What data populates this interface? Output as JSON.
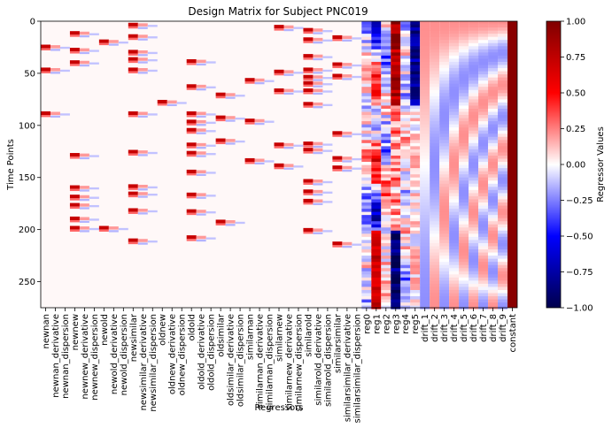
{
  "chart_data": {
    "type": "heatmap",
    "title": "Design Matrix for Subject PNC019",
    "xlabel": "Regressors",
    "ylabel": "Time Points",
    "y_ticks": [
      0,
      50,
      100,
      150,
      200,
      250
    ],
    "ylim": [
      0,
      275
    ],
    "y_inverted": true,
    "colorbar": {
      "label": "Regressor Values",
      "range": [
        -1.0,
        1.0
      ],
      "ticks": [
        "1.00",
        "0.75",
        "0.50",
        "0.25",
        "0.00",
        "−0.25",
        "−0.50",
        "−0.75",
        "−1.00"
      ],
      "colormap": "seismic",
      "colors": [
        "#00004c",
        "#0000ff",
        "#ffffff",
        "#ff0000",
        "#7f0000"
      ]
    },
    "regressors": [
      "newnan",
      "newnan_derivative",
      "newnan_dispersion",
      "newnew",
      "newnew_derivative",
      "newnew_dispersion",
      "newold",
      "newold_derivative",
      "newold_dispersion",
      "newsimilar",
      "newsimilar_derivative",
      "newsimilar_dispersion",
      "oldnew",
      "oldnew_derivative",
      "oldnew_dispersion",
      "oldold",
      "oldold_derivative",
      "oldold_dispersion",
      "oldsimilar",
      "oldsimilar_derivative",
      "oldsimilar_dispersion",
      "similarnan",
      "similarnan_derivative",
      "similarnan_dispersion",
      "similarnew",
      "similarnew_derivative",
      "similarnew_dispersion",
      "similarold",
      "similarold_derivative",
      "similarold_dispersion",
      "similarsimilar",
      "similarsimilar_derivative",
      "similarsimilar_dispersion",
      "reg0",
      "reg1",
      "reg2",
      "reg3",
      "reg4",
      "reg5",
      "drift_1",
      "drift_2",
      "drift_3",
      "drift_4",
      "drift_5",
      "drift_6",
      "drift_7",
      "drift_8",
      "drift_9",
      "constant"
    ],
    "event_onsets": {
      "newnan": [
        24,
        46,
        88
      ],
      "newnew": [
        11,
        27,
        39,
        128,
        159,
        168,
        176,
        189,
        198
      ],
      "newold": [
        19,
        198
      ],
      "newsimilar": [
        3,
        14,
        29,
        36,
        46,
        88,
        125,
        158,
        165,
        181,
        210
      ],
      "oldnew": [
        77
      ],
      "oldold": [
        38,
        62,
        88,
        96,
        104,
        118,
        126,
        144,
        166,
        182,
        207
      ],
      "oldsimilar": [
        70,
        92,
        114,
        192
      ],
      "similarnan": [
        56,
        95,
        133
      ],
      "similarnew": [
        5,
        48,
        66,
        118,
        138
      ],
      "similarold": [
        8,
        17,
        33,
        46,
        53,
        59,
        66,
        79,
        117,
        123,
        153,
        163,
        172,
        200
      ],
      "similarsimilar": [
        15,
        41,
        52,
        107,
        131,
        140,
        213
      ]
    }
  }
}
